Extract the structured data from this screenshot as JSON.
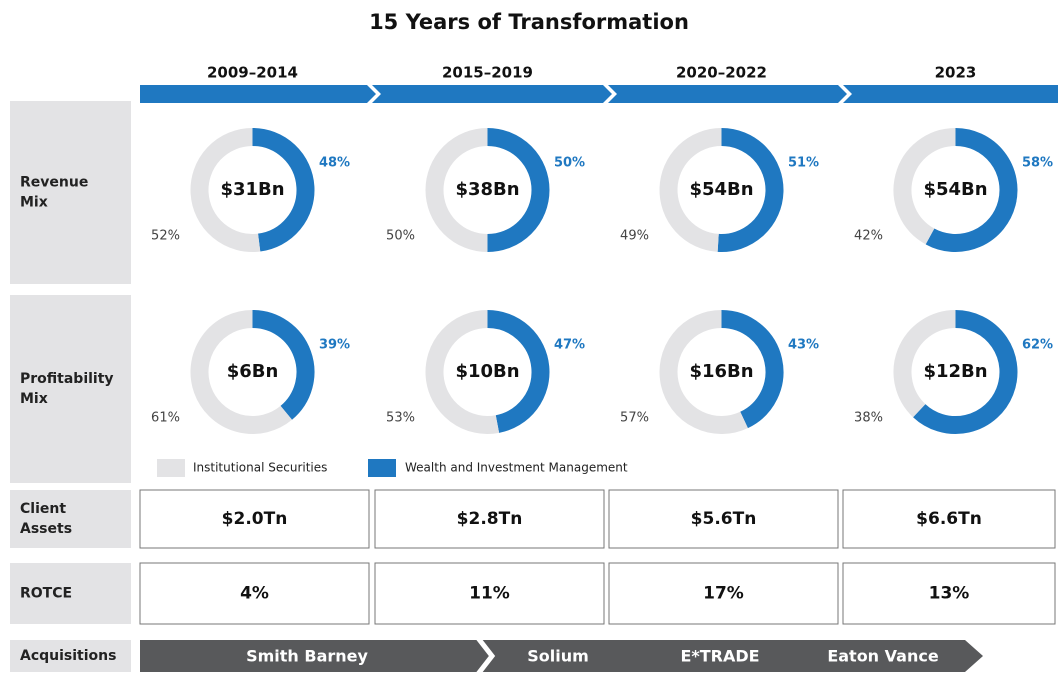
{
  "title": "15 Years of Transformation",
  "periods": [
    "2009–2014",
    "2015–2019",
    "2020–2022",
    "2023"
  ],
  "legend": [
    {
      "name": "Institutional Securities",
      "color": "#e3e3e5"
    },
    {
      "name": "Wealth and Investment Management",
      "color": "#1f78c1"
    }
  ],
  "rows": [
    {
      "label": [
        "Revenue",
        "Mix"
      ],
      "charts": [
        {
          "type": "donut",
          "center": "$31Bn",
          "values": [
            52,
            48
          ],
          "value_labels": [
            "52%",
            "48%"
          ]
        },
        {
          "type": "donut",
          "center": "$38Bn",
          "values": [
            50,
            50
          ],
          "value_labels": [
            "50%",
            "50%"
          ]
        },
        {
          "type": "donut",
          "center": "$54Bn",
          "values": [
            49,
            51
          ],
          "value_labels": [
            "49%",
            "51%"
          ]
        },
        {
          "type": "donut",
          "center": "$54Bn",
          "values": [
            42,
            58
          ],
          "value_labels": [
            "42%",
            "58%"
          ]
        }
      ]
    },
    {
      "label": [
        "Profitability",
        "Mix"
      ],
      "charts": [
        {
          "type": "donut",
          "center": "$6Bn",
          "values": [
            61,
            39
          ],
          "value_labels": [
            "61%",
            "39%"
          ]
        },
        {
          "type": "donut",
          "center": "$10Bn",
          "values": [
            53,
            47
          ],
          "value_labels": [
            "53%",
            "47%"
          ]
        },
        {
          "type": "donut",
          "center": "$16Bn",
          "values": [
            57,
            43
          ],
          "value_labels": [
            "57%",
            "43%"
          ]
        },
        {
          "type": "donut",
          "center": "$12Bn",
          "values": [
            38,
            62
          ],
          "value_labels": [
            "38%",
            "62%"
          ]
        }
      ]
    }
  ],
  "client_assets": {
    "label": [
      "Client",
      "Assets"
    ],
    "values": [
      "$2.0Tn",
      "$2.8Tn",
      "$5.6Tn",
      "$6.6Tn"
    ]
  },
  "rotce": {
    "label": [
      "ROTCE"
    ],
    "values": [
      "4%",
      "11%",
      "17%",
      "13%"
    ]
  },
  "acquisitions": {
    "label": [
      "Acquisitions"
    ],
    "items": [
      "Smith Barney",
      "Solium",
      "E*TRADE",
      "Eaton Vance"
    ]
  }
}
